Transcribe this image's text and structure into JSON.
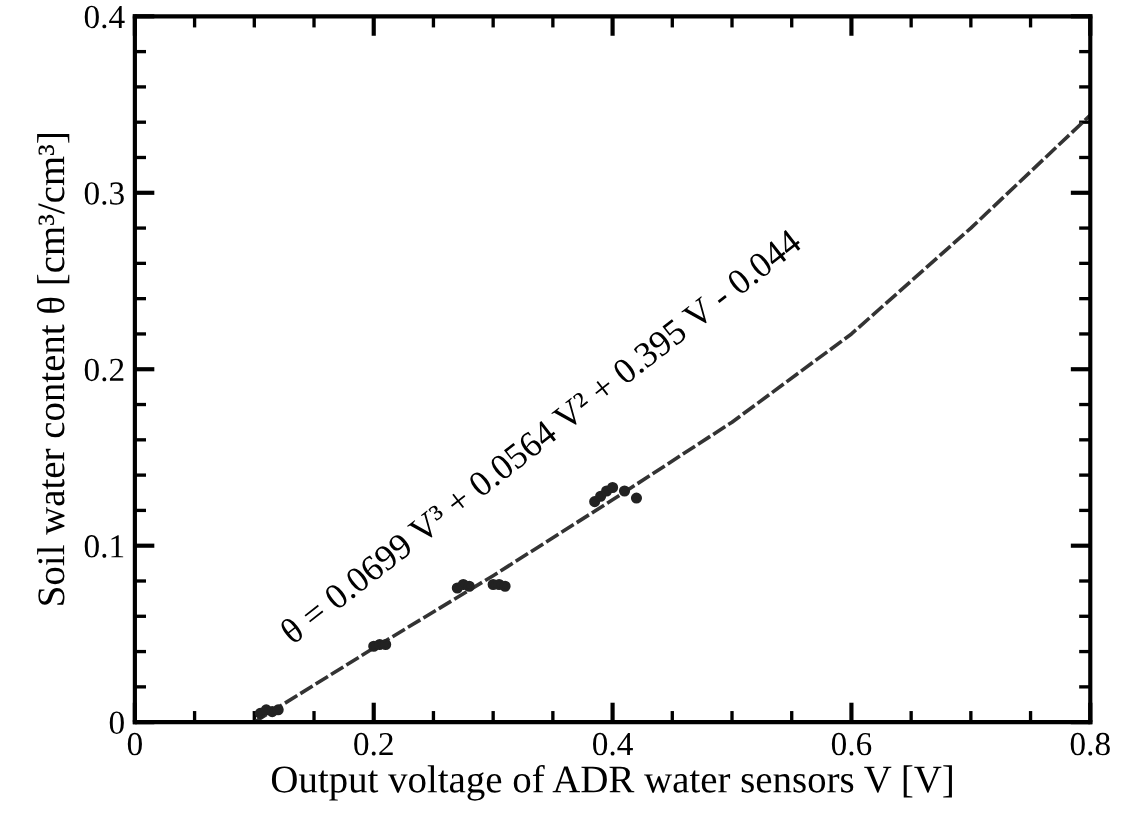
{
  "chart_data": {
    "type": "scatter",
    "xlabel": "Output voltage of ADR water sensors V [V]",
    "ylabel": "Soil water content θ [cm³/cm³]",
    "xlim": [
      0,
      0.8
    ],
    "ylim": [
      0,
      0.4
    ],
    "xticks": [
      0,
      0.2,
      0.4,
      0.6,
      0.8
    ],
    "yticks": [
      0,
      0.1,
      0.2,
      0.3,
      0.4
    ],
    "grid": false,
    "legend": false,
    "series": [
      {
        "color": "#222222",
        "marker": "circle",
        "x": [
          0.105,
          0.11,
          0.115,
          0.12,
          0.2,
          0.205,
          0.21,
          0.27,
          0.275,
          0.28,
          0.3,
          0.305,
          0.31,
          0.385,
          0.39,
          0.395,
          0.4,
          0.41,
          0.42
        ],
        "values": [
          0.005,
          0.007,
          0.006,
          0.007,
          0.043,
          0.044,
          0.044,
          0.076,
          0.078,
          0.077,
          0.078,
          0.078,
          0.077,
          0.125,
          0.128,
          0.131,
          0.133,
          0.131,
          0.127
        ]
      },
      {
        "type": "line",
        "color": "#333333",
        "line_style": "dashed",
        "marker": "none",
        "x": [
          0.1,
          0.2,
          0.3,
          0.4,
          0.5,
          0.6,
          0.7,
          0.8
        ],
        "values": [
          0.0,
          0.042,
          0.083,
          0.126,
          0.17,
          0.22,
          0.28,
          0.344
        ]
      }
    ],
    "annotations": [
      "θ = 0.0699 V³ + 0.0564 V² + 0.395 V - 0.044"
    ]
  }
}
